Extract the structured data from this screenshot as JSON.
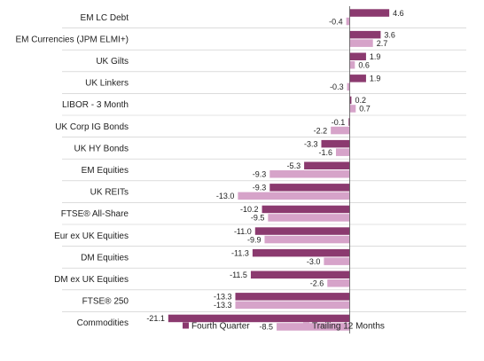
{
  "chart_data": {
    "type": "bar",
    "orientation": "horizontal",
    "categories": [
      "EM LC Debt",
      "EM Currencies (JPM ELMI+)",
      "UK Gilts",
      "UK Linkers",
      "LIBOR - 3 Month",
      "UK Corp IG Bonds",
      "UK HY Bonds",
      "EM Equities",
      "UK REITs",
      "FTSE® All-Share",
      "Eur ex UK Equities",
      "DM Equities",
      "DM ex UK Equities",
      "FTSE® 250",
      "Commodities"
    ],
    "series": [
      {
        "name": "Fourth Quarter",
        "color": "#8b3a6f",
        "values": [
          4.6,
          3.6,
          1.9,
          1.9,
          0.2,
          -0.1,
          -3.3,
          -5.3,
          -9.3,
          -10.2,
          -11.0,
          -11.3,
          -11.5,
          -13.3,
          -21.1
        ],
        "labels": [
          "4.6",
          "3.6",
          "1.9",
          "1.9",
          "0.2",
          "-0.1",
          "-3.3",
          "-5.3",
          "-9.3",
          "-10.2",
          "-11.0",
          "-11.3",
          "-11.5",
          "-13.3",
          "-21.1"
        ]
      },
      {
        "name": "Trailing 12 Months",
        "color": "#d6a3c9",
        "values": [
          -0.4,
          2.7,
          0.6,
          -0.3,
          0.7,
          -2.2,
          -1.6,
          -9.3,
          -13.0,
          -9.5,
          -9.9,
          -3.0,
          -2.6,
          -13.3,
          -8.5
        ],
        "labels": [
          "-0.4",
          "2.7",
          "0.6",
          "-0.3",
          "0.7",
          "-2.2",
          "-1.6",
          "-9.3",
          "-13.0",
          "-9.5",
          "-9.9",
          "-3.0",
          "-2.6",
          "-13.3",
          "-8.5"
        ]
      }
    ],
    "xlim": [
      -22,
      7
    ],
    "grid": false,
    "row_separators": true,
    "legend_position": "bottom-right"
  }
}
